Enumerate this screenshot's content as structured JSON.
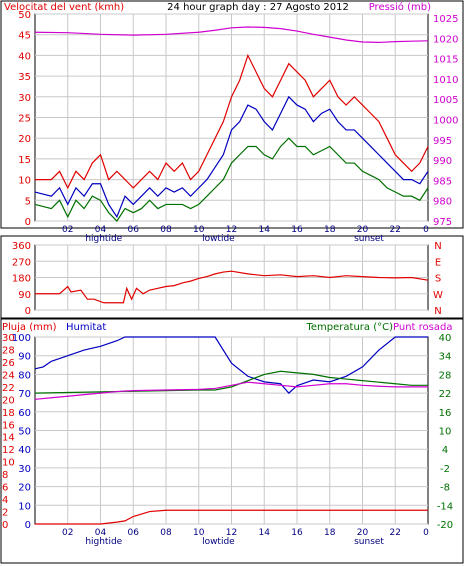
{
  "page": {
    "title_left": "Velocitat del vent (kmh)",
    "title_center": "24 hour graph day : 27 Agosto 2012",
    "title_right": "Pressió (mb)"
  },
  "colors": {
    "wind_gust": "#e00000",
    "wind_avg": "#0000c0",
    "wind_min": "#007000",
    "pressure": "#d000d0",
    "direction": "#e00000",
    "rain": "#e00000",
    "humidity": "#0000c0",
    "temperature": "#007000",
    "dewpoint": "#d000d0",
    "grid": "#c8c8c8",
    "frame": "#000000"
  },
  "x_ticks": [
    "02",
    "04",
    "06",
    "08",
    "10",
    "12",
    "14",
    "16",
    "18",
    "20",
    "22",
    "0"
  ],
  "tide_labels": [
    {
      "label": "hightide",
      "x": 4.2
    },
    {
      "label": "lowtide",
      "x": 11.2
    },
    {
      "label": "sunset",
      "x": 20.4
    }
  ],
  "chart_data": [
    {
      "type": "line",
      "panel": "wind_pressure",
      "y_left": {
        "label": "Velocitat del vent (kmh)",
        "ticks": [
          0,
          5,
          10,
          15,
          20,
          25,
          30,
          35,
          40,
          45,
          50
        ],
        "range": [
          0,
          50
        ]
      },
      "y_right": {
        "label": "Pressió (mb)",
        "ticks": [
          975,
          980,
          985,
          990,
          995,
          1000,
          1005,
          1010,
          1015,
          1020,
          1025
        ],
        "range": [
          975,
          1026
        ]
      },
      "series": [
        {
          "name": "gust",
          "axis": "left",
          "x": [
            0,
            1,
            1.5,
            2,
            2.5,
            3,
            3.5,
            4,
            4.5,
            5,
            5.5,
            6,
            6.5,
            7,
            7.5,
            8,
            8.5,
            9,
            9.5,
            10,
            10.5,
            11,
            11.5,
            12,
            12.5,
            13,
            13.5,
            14,
            14.5,
            15,
            15.5,
            16,
            16.5,
            17,
            17.5,
            18,
            18.5,
            19,
            19.5,
            20,
            20.5,
            21,
            21.5,
            22,
            22.5,
            23,
            23.5,
            24
          ],
          "y": [
            10,
            10,
            12,
            8,
            12,
            10,
            14,
            16,
            10,
            12,
            10,
            8,
            10,
            12,
            10,
            14,
            12,
            14,
            10,
            12,
            16,
            20,
            24,
            30,
            34,
            40,
            36,
            32,
            30,
            34,
            38,
            36,
            34,
            30,
            32,
            34,
            30,
            28,
            30,
            28,
            26,
            24,
            20,
            16,
            14,
            12,
            14,
            18
          ]
        },
        {
          "name": "average",
          "axis": "left",
          "x": [
            0,
            1,
            1.5,
            2,
            2.5,
            3,
            3.5,
            4,
            4.5,
            5,
            5.5,
            6,
            6.5,
            7,
            7.5,
            8,
            8.5,
            9,
            9.5,
            10,
            10.5,
            11,
            11.5,
            12,
            12.5,
            13,
            13.5,
            14,
            14.5,
            15,
            15.5,
            16,
            16.5,
            17,
            17.5,
            18,
            18.5,
            19,
            19.5,
            20,
            20.5,
            21,
            21.5,
            22,
            22.5,
            23,
            23.5,
            24
          ],
          "y": [
            7,
            6,
            8,
            4,
            8,
            6,
            9,
            9,
            4,
            1,
            6,
            4,
            6,
            8,
            6,
            8,
            7,
            8,
            6,
            8,
            10,
            13,
            16,
            22,
            24,
            28,
            27,
            24,
            22,
            26,
            30,
            28,
            27,
            24,
            26,
            27,
            24,
            22,
            22,
            20,
            18,
            16,
            14,
            12,
            10,
            10,
            9,
            12
          ]
        },
        {
          "name": "minimum",
          "axis": "left",
          "x": [
            0,
            1,
            1.5,
            2,
            2.5,
            3,
            3.5,
            4,
            4.5,
            5,
            5.5,
            6,
            6.5,
            7,
            7.5,
            8,
            8.5,
            9,
            9.5,
            10,
            10.5,
            11,
            11.5,
            12,
            12.5,
            13,
            13.5,
            14,
            14.5,
            15,
            15.5,
            16,
            16.5,
            17,
            17.5,
            18,
            18.5,
            19,
            19.5,
            20,
            20.5,
            21,
            21.5,
            22,
            22.5,
            23,
            23.5,
            24
          ],
          "y": [
            4,
            3,
            5,
            1,
            5,
            3,
            6,
            5,
            2,
            0,
            3,
            2,
            3,
            5,
            3,
            4,
            4,
            4,
            3,
            4,
            6,
            8,
            10,
            14,
            16,
            18,
            18,
            16,
            15,
            18,
            20,
            18,
            18,
            16,
            17,
            18,
            16,
            14,
            14,
            12,
            11,
            10,
            8,
            7,
            6,
            6,
            5,
            8
          ]
        },
        {
          "name": "pressure",
          "axis": "right",
          "x": [
            0,
            2,
            4,
            6,
            8,
            10,
            11,
            12,
            13,
            14,
            15,
            16,
            17,
            18,
            19,
            20,
            21,
            22,
            23,
            24
          ],
          "y": [
            1021.5,
            1021.4,
            1021,
            1020.8,
            1021,
            1021.5,
            1022,
            1022.6,
            1022.8,
            1022.7,
            1022.4,
            1021.8,
            1021,
            1020.3,
            1019.6,
            1019.1,
            1019,
            1019.2,
            1019.3,
            1019.4
          ]
        }
      ]
    },
    {
      "type": "line",
      "panel": "wind_direction",
      "y_left": {
        "ticks": [
          0,
          90,
          180,
          270,
          360
        ],
        "range": [
          0,
          360
        ]
      },
      "y_right": {
        "ticks": [
          "N",
          "W",
          "S",
          "E",
          "N"
        ]
      },
      "series": [
        {
          "name": "direction",
          "axis": "left",
          "x": [
            0,
            1.5,
            2,
            2.2,
            2.8,
            3.2,
            3.6,
            4.2,
            4.5,
            5,
            5.4,
            5.6,
            5.9,
            6.2,
            6.6,
            7,
            7.5,
            8,
            8.5,
            9,
            9.5,
            10,
            10.5,
            11,
            11.5,
            12,
            13,
            14,
            15,
            16,
            17,
            18,
            19,
            20,
            21,
            22,
            23,
            24
          ],
          "y": [
            90,
            90,
            130,
            100,
            110,
            60,
            60,
            40,
            40,
            40,
            40,
            120,
            60,
            120,
            90,
            110,
            120,
            130,
            135,
            150,
            160,
            175,
            185,
            200,
            210,
            215,
            200,
            190,
            195,
            185,
            190,
            180,
            190,
            185,
            180,
            178,
            180,
            165
          ]
        }
      ]
    },
    {
      "type": "line",
      "panel": "rain_humidity_temperature",
      "labels": {
        "rain": "Pluja (mm)",
        "humidity": "Humitat",
        "temperature": "Temperatura (°C)",
        "dewpoint": "Punt rosada"
      },
      "y_left_rain": {
        "ticks": [
          0,
          2,
          4,
          6,
          8,
          10,
          12,
          14,
          16,
          18,
          20,
          22,
          24,
          26,
          28,
          30
        ],
        "range": [
          0,
          30
        ]
      },
      "y_left_humidity": {
        "ticks": [
          0,
          10,
          20,
          30,
          40,
          50,
          60,
          70,
          80,
          90,
          100
        ],
        "range": [
          0,
          100
        ]
      },
      "y_right": {
        "ticks": [
          -20,
          -14,
          -8,
          -2,
          4,
          10,
          16,
          22,
          28,
          34,
          40
        ],
        "range": [
          -20,
          40
        ]
      },
      "series": [
        {
          "name": "rain",
          "axis": "rain",
          "x": [
            0,
            4,
            5,
            5.5,
            6,
            7,
            8,
            24
          ],
          "y": [
            0,
            0,
            0.3,
            0.5,
            1.2,
            2,
            2.2,
            2.2
          ]
        },
        {
          "name": "humidity",
          "axis": "humidity",
          "x": [
            0,
            0.5,
            1,
            2,
            3,
            4,
            5,
            5.5,
            6,
            8,
            10,
            11,
            12,
            13,
            14,
            15,
            15.5,
            16,
            17,
            18,
            19,
            20,
            21,
            22,
            23,
            24
          ],
          "y": [
            83,
            84,
            87,
            90,
            93,
            95,
            98,
            100,
            100,
            100,
            100,
            100,
            86,
            79,
            76,
            75,
            70,
            74,
            77,
            76,
            79,
            84,
            93,
            100,
            100,
            100
          ]
        },
        {
          "name": "temperature",
          "axis": "right",
          "x": [
            0,
            2,
            4,
            6,
            8,
            10,
            11,
            12,
            13,
            14,
            15,
            16,
            17,
            18,
            19,
            20,
            21,
            22,
            23,
            24
          ],
          "y": [
            22,
            22.2,
            22.4,
            22.6,
            22.8,
            23,
            23,
            24,
            26,
            28,
            29,
            28.5,
            28,
            27,
            26.5,
            26,
            25.5,
            25,
            24.5,
            24.5
          ]
        },
        {
          "name": "dewpoint",
          "axis": "right",
          "x": [
            0,
            1,
            2,
            3,
            4,
            5,
            6,
            8,
            10,
            11,
            12,
            13,
            14,
            15,
            16,
            17,
            18,
            19,
            20,
            21,
            22,
            23,
            24
          ],
          "y": [
            20,
            20.5,
            21,
            21.5,
            22,
            22.5,
            22.8,
            23,
            23.2,
            23.5,
            24.5,
            25.5,
            25,
            24.5,
            24,
            24.5,
            25,
            25,
            24.5,
            24.2,
            24,
            24,
            24
          ]
        }
      ]
    }
  ]
}
